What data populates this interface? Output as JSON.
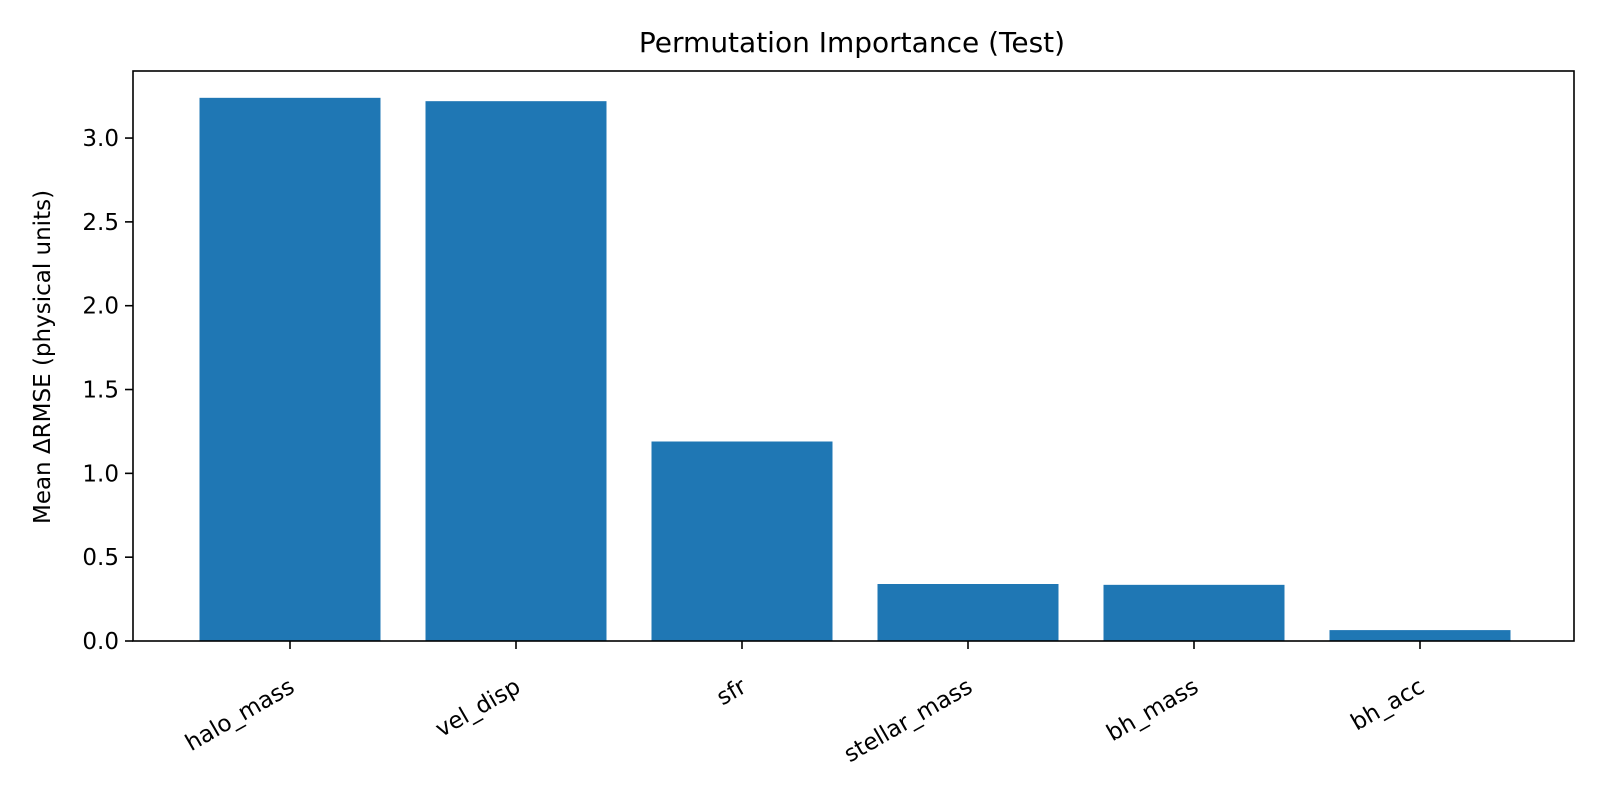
{
  "chart_data": {
    "type": "bar",
    "title": "Permutation Importance (Test)",
    "xlabel": "",
    "ylabel": "Mean ΔRMSE (physical units)",
    "categories": [
      "halo_mass",
      "vel_disp",
      "sfr",
      "stellar_mass",
      "bh_mass",
      "bh_acc"
    ],
    "values": [
      3.24,
      3.22,
      1.19,
      0.34,
      0.335,
      0.065
    ],
    "ylim": [
      0,
      3.4
    ],
    "yticks": [
      "0.0",
      "0.5",
      "1.0",
      "1.5",
      "2.0",
      "2.5",
      "3.0"
    ],
    "bar_color": "#1f77b4",
    "grid": false,
    "legend": "none",
    "xtick_rotation": "30 degrees"
  }
}
